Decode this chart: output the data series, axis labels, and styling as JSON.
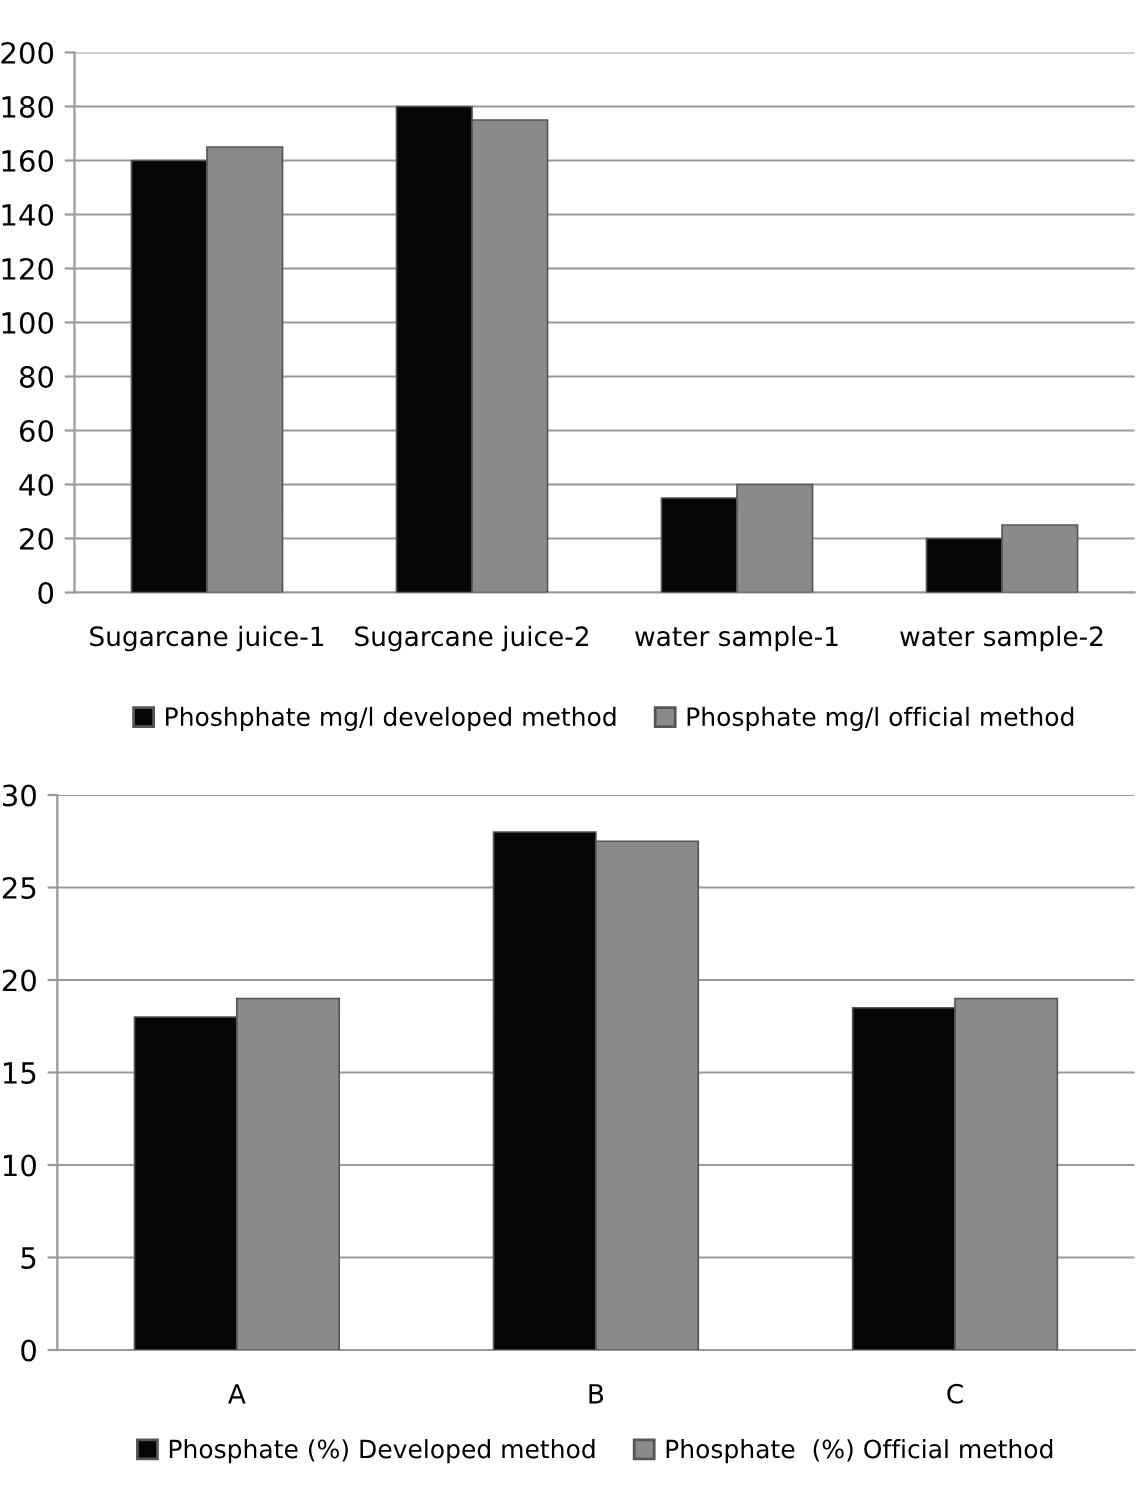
{
  "chart_data": [
    {
      "type": "bar",
      "categories": [
        "Sugarcane juice-1",
        "Sugarcane juice-2",
        "water sample-1",
        "water sample-2"
      ],
      "series": [
        {
          "name": "Phoshphate mg/l developed method",
          "color": "#050505",
          "values": [
            160,
            180,
            35,
            20
          ]
        },
        {
          "name": "Phosphate mg/l official method",
          "color": "#8a8a8a",
          "values": [
            165,
            175,
            40,
            25
          ]
        }
      ],
      "ylim": [
        0,
        200
      ],
      "yticks": [
        0,
        20,
        40,
        60,
        80,
        100,
        120,
        140,
        160,
        180,
        200
      ],
      "grid": "y",
      "legend": "bottom"
    },
    {
      "type": "bar",
      "categories": [
        "A",
        "B",
        "C"
      ],
      "series": [
        {
          "name": "Phosphate (%) Developed method",
          "color": "#050505",
          "values": [
            18,
            28,
            18.5
          ]
        },
        {
          "name": "Phosphate  (%) Official method",
          "color": "#8a8a8a",
          "values": [
            19,
            27.5,
            19
          ]
        }
      ],
      "ylim": [
        0,
        30
      ],
      "yticks": [
        0,
        5,
        10,
        15,
        20,
        25,
        30
      ],
      "grid": "y",
      "legend": "bottom"
    }
  ]
}
